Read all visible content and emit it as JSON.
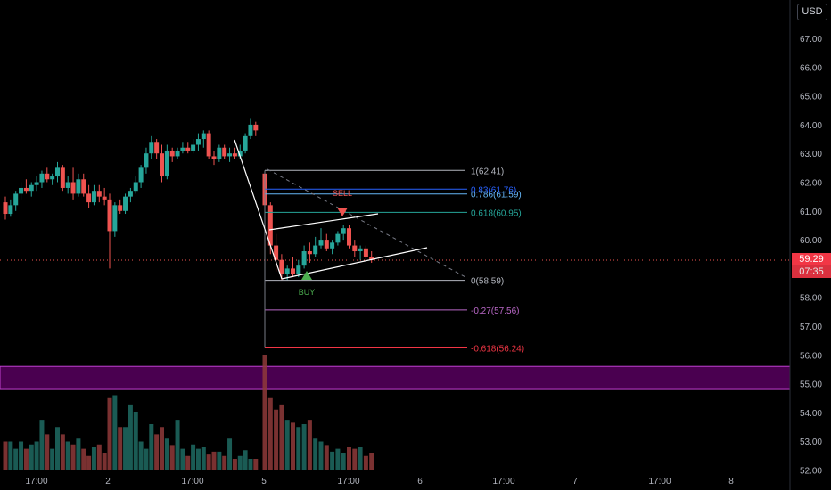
{
  "currency": "USD",
  "current_price": "59.29",
  "countdown": "07:35",
  "colors": {
    "background": "#000000",
    "up": "#26a69a",
    "down": "#ef5350",
    "zone": "#4a0050",
    "zone_border": "#c040d0"
  },
  "chart_data": {
    "type": "candlestick",
    "ylim": [
      52,
      67.5
    ],
    "y_ticks": [
      "67.00",
      "66.00",
      "65.00",
      "64.00",
      "63.00",
      "62.00",
      "61.00",
      "60.00",
      "58.00",
      "57.00",
      "56.00",
      "55.00",
      "54.00",
      "53.00",
      "52.00"
    ],
    "x_ticks": [
      "17:00",
      "2",
      "17:00",
      "5",
      "17:00",
      "6",
      "17:00",
      "7",
      "17:00",
      "8"
    ],
    "candles": [
      {
        "o": 61.3,
        "h": 61.5,
        "l": 60.7,
        "c": 60.9
      },
      {
        "o": 60.9,
        "h": 61.4,
        "l": 60.8,
        "c": 61.2
      },
      {
        "o": 61.2,
        "h": 61.7,
        "l": 61.0,
        "c": 61.6
      },
      {
        "o": 61.6,
        "h": 62.0,
        "l": 61.4,
        "c": 61.8
      },
      {
        "o": 61.8,
        "h": 62.1,
        "l": 61.6,
        "c": 61.7
      },
      {
        "o": 61.7,
        "h": 62.0,
        "l": 61.5,
        "c": 61.9
      },
      {
        "o": 61.9,
        "h": 62.2,
        "l": 61.7,
        "c": 62.0
      },
      {
        "o": 62.0,
        "h": 62.4,
        "l": 61.8,
        "c": 62.3
      },
      {
        "o": 62.3,
        "h": 62.5,
        "l": 62.0,
        "c": 62.1
      },
      {
        "o": 62.1,
        "h": 62.3,
        "l": 61.9,
        "c": 62.2
      },
      {
        "o": 62.2,
        "h": 62.7,
        "l": 62.0,
        "c": 62.5
      },
      {
        "o": 62.5,
        "h": 62.6,
        "l": 61.7,
        "c": 61.8
      },
      {
        "o": 61.8,
        "h": 62.2,
        "l": 61.6,
        "c": 62.0
      },
      {
        "o": 62.0,
        "h": 62.5,
        "l": 61.4,
        "c": 61.6
      },
      {
        "o": 61.6,
        "h": 62.3,
        "l": 61.5,
        "c": 62.1
      },
      {
        "o": 62.1,
        "h": 62.3,
        "l": 61.5,
        "c": 61.6
      },
      {
        "o": 61.6,
        "h": 61.9,
        "l": 61.1,
        "c": 61.3
      },
      {
        "o": 61.3,
        "h": 61.9,
        "l": 61.2,
        "c": 61.7
      },
      {
        "o": 61.7,
        "h": 61.9,
        "l": 61.3,
        "c": 61.5
      },
      {
        "o": 61.5,
        "h": 61.8,
        "l": 61.2,
        "c": 61.4
      },
      {
        "o": 61.4,
        "h": 61.6,
        "l": 59.0,
        "c": 60.3
      },
      {
        "o": 60.3,
        "h": 61.3,
        "l": 60.1,
        "c": 61.2
      },
      {
        "o": 61.2,
        "h": 61.4,
        "l": 60.9,
        "c": 61.0
      },
      {
        "o": 61.0,
        "h": 61.6,
        "l": 60.9,
        "c": 61.5
      },
      {
        "o": 61.5,
        "h": 61.8,
        "l": 61.3,
        "c": 61.7
      },
      {
        "o": 61.7,
        "h": 62.2,
        "l": 61.6,
        "c": 62.0
      },
      {
        "o": 62.0,
        "h": 62.6,
        "l": 61.8,
        "c": 62.5
      },
      {
        "o": 62.5,
        "h": 63.2,
        "l": 62.3,
        "c": 63.0
      },
      {
        "o": 63.0,
        "h": 63.6,
        "l": 62.8,
        "c": 63.4
      },
      {
        "o": 63.4,
        "h": 63.5,
        "l": 62.8,
        "c": 63.0
      },
      {
        "o": 63.0,
        "h": 63.3,
        "l": 62.0,
        "c": 62.2
      },
      {
        "o": 62.2,
        "h": 63.3,
        "l": 62.1,
        "c": 63.1
      },
      {
        "o": 63.1,
        "h": 63.2,
        "l": 62.7,
        "c": 62.9
      },
      {
        "o": 62.9,
        "h": 63.2,
        "l": 62.8,
        "c": 63.1
      },
      {
        "o": 63.1,
        "h": 63.4,
        "l": 63.0,
        "c": 63.2
      },
      {
        "o": 63.2,
        "h": 63.4,
        "l": 63.0,
        "c": 63.1
      },
      {
        "o": 63.1,
        "h": 63.5,
        "l": 63.0,
        "c": 63.3
      },
      {
        "o": 63.3,
        "h": 63.7,
        "l": 63.1,
        "c": 63.5
      },
      {
        "o": 63.5,
        "h": 63.8,
        "l": 63.2,
        "c": 63.7
      },
      {
        "o": 63.7,
        "h": 63.8,
        "l": 62.8,
        "c": 62.9
      },
      {
        "o": 62.9,
        "h": 63.1,
        "l": 62.6,
        "c": 62.8
      },
      {
        "o": 62.8,
        "h": 63.3,
        "l": 62.7,
        "c": 63.2
      },
      {
        "o": 63.2,
        "h": 63.3,
        "l": 62.8,
        "c": 62.9
      },
      {
        "o": 62.9,
        "h": 63.2,
        "l": 62.7,
        "c": 63.0
      },
      {
        "o": 63.0,
        "h": 63.2,
        "l": 62.8,
        "c": 62.9
      },
      {
        "o": 62.9,
        "h": 63.3,
        "l": 62.8,
        "c": 63.1
      },
      {
        "o": 63.1,
        "h": 63.7,
        "l": 63.0,
        "c": 63.6
      },
      {
        "o": 63.6,
        "h": 64.2,
        "l": 63.5,
        "c": 64.0
      },
      {
        "o": 64.0,
        "h": 64.1,
        "l": 63.6,
        "c": 63.8
      },
      {
        "o": 62.3,
        "h": 62.4,
        "l": 61.0,
        "c": 61.2
      },
      {
        "o": 61.2,
        "h": 61.3,
        "l": 59.5,
        "c": 59.8
      },
      {
        "o": 59.8,
        "h": 60.2,
        "l": 58.9,
        "c": 59.3
      },
      {
        "o": 59.3,
        "h": 59.5,
        "l": 58.6,
        "c": 58.8
      },
      {
        "o": 58.8,
        "h": 59.1,
        "l": 58.6,
        "c": 59.0
      },
      {
        "o": 59.0,
        "h": 59.4,
        "l": 58.7,
        "c": 58.8
      },
      {
        "o": 58.8,
        "h": 59.3,
        "l": 58.7,
        "c": 59.1
      },
      {
        "o": 59.1,
        "h": 59.8,
        "l": 59.0,
        "c": 59.6
      },
      {
        "o": 59.6,
        "h": 59.9,
        "l": 59.2,
        "c": 59.5
      },
      {
        "o": 59.5,
        "h": 60.1,
        "l": 59.4,
        "c": 59.8
      },
      {
        "o": 59.8,
        "h": 60.4,
        "l": 59.7,
        "c": 60.0
      },
      {
        "o": 60.0,
        "h": 60.2,
        "l": 59.6,
        "c": 59.7
      },
      {
        "o": 59.7,
        "h": 60.0,
        "l": 59.5,
        "c": 59.9
      },
      {
        "o": 59.9,
        "h": 60.3,
        "l": 59.8,
        "c": 60.2
      },
      {
        "o": 60.2,
        "h": 60.5,
        "l": 60.0,
        "c": 60.4
      },
      {
        "o": 60.4,
        "h": 60.5,
        "l": 59.7,
        "c": 59.8
      },
      {
        "o": 59.8,
        "h": 60.0,
        "l": 59.4,
        "c": 59.6
      },
      {
        "o": 59.6,
        "h": 59.8,
        "l": 59.3,
        "c": 59.7
      },
      {
        "o": 59.7,
        "h": 59.8,
        "l": 59.3,
        "c": 59.4
      },
      {
        "o": 59.4,
        "h": 59.6,
        "l": 59.2,
        "c": 59.3
      }
    ],
    "volume": [
      2,
      2,
      1.5,
      2,
      1.5,
      1.8,
      2,
      3.5,
      2.5,
      1.5,
      3,
      2.5,
      2,
      1.8,
      2.2,
      1.5,
      1,
      1.6,
      1.8,
      1.2,
      5,
      5.2,
      3,
      3,
      4.5,
      4,
      2,
      1.5,
      3.2,
      2.5,
      3,
      2.2,
      1.7,
      3.5,
      1.5,
      1,
      1.8,
      1.5,
      1.6,
      1.1,
      1.3,
      1.3,
      1,
      2.2,
      0.8,
      1,
      1.4,
      0.8,
      0.8,
      8,
      5,
      4.2,
      4.5,
      3.5,
      3.3,
      3,
      3.2,
      3.5,
      2.2,
      2,
      1.7,
      1.3,
      1.5,
      1.2,
      1.6,
      1.5,
      1.6,
      1,
      1.2
    ],
    "fibonacci": [
      {
        "level": "1",
        "price": 62.41,
        "label": "1(62.41)",
        "color": "#b2b5be"
      },
      {
        "level": "0.83",
        "price": 61.76,
        "label": "0.83(61.76)",
        "color": "#2962ff"
      },
      {
        "level": "0.786",
        "price": 61.59,
        "label": "0.786(61.59)",
        "color": "#64b5f6"
      },
      {
        "level": "0.618",
        "price": 60.95,
        "label": "0.618(60.95)",
        "color": "#26a69a"
      },
      {
        "level": "0",
        "price": 58.59,
        "label": "0(58.59)",
        "color": "#b2b5be"
      },
      {
        "level": "-0.27",
        "price": 57.56,
        "label": "-0.27(57.56)",
        "color": "#ba68c8"
      },
      {
        "level": "-0.618",
        "price": 56.24,
        "label": "-0.618(56.24)",
        "color": "#f23645"
      }
    ],
    "signals": [
      {
        "label": "SELL",
        "color": "#ef5350"
      },
      {
        "label": "BUY",
        "color": "#4caf50"
      }
    ],
    "zone": {
      "low": 54.8,
      "high": 55.6
    }
  }
}
